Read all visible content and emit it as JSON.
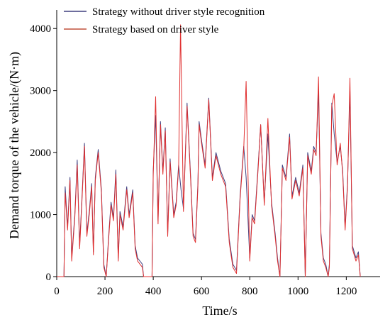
{
  "chart_data": {
    "type": "line",
    "title": "",
    "xlabel": "Time/s",
    "ylabel": "Demand torque of the vehicle/(N·m)",
    "xlim": [
      0,
      1340
    ],
    "ylim": [
      0,
      4300
    ],
    "x_ticks": [
      0,
      200,
      400,
      600,
      800,
      1000,
      1200
    ],
    "y_ticks": [
      0,
      1000,
      2000,
      3000,
      4000
    ],
    "grid": false,
    "legend_position": "top-left",
    "series": [
      {
        "name": "Strategy without driver style recognition",
        "color": "#3f3f7f",
        "points": [
          [
            0,
            0
          ],
          [
            30,
            0
          ],
          [
            35,
            1450
          ],
          [
            45,
            800
          ],
          [
            55,
            1600
          ],
          [
            62,
            300
          ],
          [
            75,
            1000
          ],
          [
            85,
            1880
          ],
          [
            95,
            500
          ],
          [
            105,
            1300
          ],
          [
            115,
            2150
          ],
          [
            125,
            700
          ],
          [
            135,
            1050
          ],
          [
            145,
            1500
          ],
          [
            152,
            400
          ],
          [
            160,
            1600
          ],
          [
            172,
            2050
          ],
          [
            185,
            1400
          ],
          [
            195,
            200
          ],
          [
            205,
            0
          ],
          [
            215,
            650
          ],
          [
            225,
            1200
          ],
          [
            235,
            950
          ],
          [
            245,
            1720
          ],
          [
            255,
            300
          ],
          [
            262,
            1050
          ],
          [
            275,
            800
          ],
          [
            290,
            1450
          ],
          [
            300,
            1000
          ],
          [
            315,
            1400
          ],
          [
            325,
            500
          ],
          [
            335,
            300
          ],
          [
            355,
            200
          ],
          [
            360,
            0
          ],
          [
            395,
            0
          ],
          [
            400,
            1700
          ],
          [
            410,
            2600
          ],
          [
            420,
            900
          ],
          [
            430,
            2500
          ],
          [
            440,
            1700
          ],
          [
            450,
            2400
          ],
          [
            460,
            700
          ],
          [
            470,
            1900
          ],
          [
            485,
            1000
          ],
          [
            495,
            1200
          ],
          [
            505,
            1800
          ],
          [
            515,
            1400
          ],
          [
            525,
            1100
          ],
          [
            540,
            2800
          ],
          [
            555,
            1600
          ],
          [
            565,
            700
          ],
          [
            575,
            600
          ],
          [
            585,
            1500
          ],
          [
            590,
            2500
          ],
          [
            600,
            2200
          ],
          [
            615,
            1800
          ],
          [
            630,
            2880
          ],
          [
            645,
            1600
          ],
          [
            660,
            2000
          ],
          [
            680,
            1700
          ],
          [
            700,
            1500
          ],
          [
            715,
            600
          ],
          [
            730,
            200
          ],
          [
            745,
            100
          ],
          [
            760,
            1300
          ],
          [
            775,
            2100
          ],
          [
            785,
            1600
          ],
          [
            800,
            300
          ],
          [
            810,
            1000
          ],
          [
            820,
            900
          ],
          [
            835,
            1800
          ],
          [
            845,
            2450
          ],
          [
            860,
            1200
          ],
          [
            875,
            2300
          ],
          [
            890,
            1200
          ],
          [
            905,
            700
          ],
          [
            915,
            300
          ],
          [
            925,
            0
          ],
          [
            935,
            1800
          ],
          [
            950,
            1600
          ],
          [
            965,
            2300
          ],
          [
            975,
            1300
          ],
          [
            990,
            1600
          ],
          [
            1005,
            1350
          ],
          [
            1020,
            1800
          ],
          [
            1030,
            0
          ],
          [
            1040,
            2000
          ],
          [
            1055,
            1700
          ],
          [
            1065,
            2100
          ],
          [
            1075,
            2000
          ],
          [
            1085,
            3000
          ],
          [
            1095,
            700
          ],
          [
            1105,
            300
          ],
          [
            1115,
            200
          ],
          [
            1125,
            0
          ],
          [
            1130,
            200
          ],
          [
            1140,
            2800
          ],
          [
            1150,
            2300
          ],
          [
            1162,
            1850
          ],
          [
            1175,
            2100
          ],
          [
            1185,
            1700
          ],
          [
            1195,
            800
          ],
          [
            1205,
            1500
          ],
          [
            1215,
            3000
          ],
          [
            1225,
            500
          ],
          [
            1240,
            300
          ],
          [
            1250,
            400
          ],
          [
            1258,
            0
          ]
        ]
      },
      {
        "name": "Strategy based on driver style",
        "color": "#e03030",
        "points": [
          [
            0,
            0
          ],
          [
            30,
            0
          ],
          [
            35,
            1350
          ],
          [
            45,
            750
          ],
          [
            55,
            1550
          ],
          [
            62,
            250
          ],
          [
            75,
            950
          ],
          [
            85,
            1800
          ],
          [
            95,
            450
          ],
          [
            105,
            1250
          ],
          [
            115,
            2100
          ],
          [
            125,
            650
          ],
          [
            135,
            1000
          ],
          [
            145,
            1450
          ],
          [
            152,
            350
          ],
          [
            160,
            1550
          ],
          [
            172,
            2000
          ],
          [
            185,
            1350
          ],
          [
            195,
            150
          ],
          [
            205,
            0
          ],
          [
            215,
            600
          ],
          [
            225,
            1150
          ],
          [
            235,
            900
          ],
          [
            245,
            1650
          ],
          [
            255,
            250
          ],
          [
            262,
            1000
          ],
          [
            275,
            750
          ],
          [
            290,
            1400
          ],
          [
            300,
            950
          ],
          [
            315,
            1350
          ],
          [
            325,
            450
          ],
          [
            335,
            250
          ],
          [
            355,
            150
          ],
          [
            360,
            0
          ],
          [
            395,
            0
          ],
          [
            400,
            1650
          ],
          [
            410,
            2900
          ],
          [
            420,
            850
          ],
          [
            430,
            2450
          ],
          [
            440,
            1650
          ],
          [
            450,
            2350
          ],
          [
            460,
            650
          ],
          [
            470,
            1850
          ],
          [
            485,
            950
          ],
          [
            495,
            1150
          ],
          [
            505,
            1750
          ],
          [
            513,
            4060
          ],
          [
            525,
            1050
          ],
          [
            540,
            2750
          ],
          [
            555,
            1550
          ],
          [
            565,
            650
          ],
          [
            575,
            550
          ],
          [
            585,
            1450
          ],
          [
            590,
            2450
          ],
          [
            600,
            2150
          ],
          [
            615,
            1750
          ],
          [
            630,
            2850
          ],
          [
            645,
            1550
          ],
          [
            660,
            1950
          ],
          [
            680,
            1650
          ],
          [
            700,
            1450
          ],
          [
            715,
            550
          ],
          [
            730,
            150
          ],
          [
            745,
            50
          ],
          [
            760,
            1250
          ],
          [
            775,
            2050
          ],
          [
            785,
            3150
          ],
          [
            800,
            250
          ],
          [
            810,
            950
          ],
          [
            820,
            850
          ],
          [
            835,
            1750
          ],
          [
            845,
            2450
          ],
          [
            860,
            1150
          ],
          [
            875,
            2550
          ],
          [
            890,
            1150
          ],
          [
            905,
            650
          ],
          [
            915,
            250
          ],
          [
            925,
            0
          ],
          [
            935,
            1750
          ],
          [
            950,
            1550
          ],
          [
            965,
            2250
          ],
          [
            975,
            1250
          ],
          [
            990,
            1550
          ],
          [
            1005,
            1300
          ],
          [
            1020,
            1750
          ],
          [
            1030,
            0
          ],
          [
            1040,
            1950
          ],
          [
            1055,
            1650
          ],
          [
            1065,
            2050
          ],
          [
            1075,
            1950
          ],
          [
            1085,
            3220
          ],
          [
            1095,
            650
          ],
          [
            1105,
            250
          ],
          [
            1115,
            150
          ],
          [
            1125,
            0
          ],
          [
            1130,
            150
          ],
          [
            1140,
            2750
          ],
          [
            1150,
            2950
          ],
          [
            1162,
            1800
          ],
          [
            1175,
            2150
          ],
          [
            1185,
            1650
          ],
          [
            1195,
            750
          ],
          [
            1205,
            1450
          ],
          [
            1215,
            3200
          ],
          [
            1225,
            450
          ],
          [
            1240,
            250
          ],
          [
            1250,
            350
          ],
          [
            1258,
            0
          ]
        ]
      }
    ]
  }
}
